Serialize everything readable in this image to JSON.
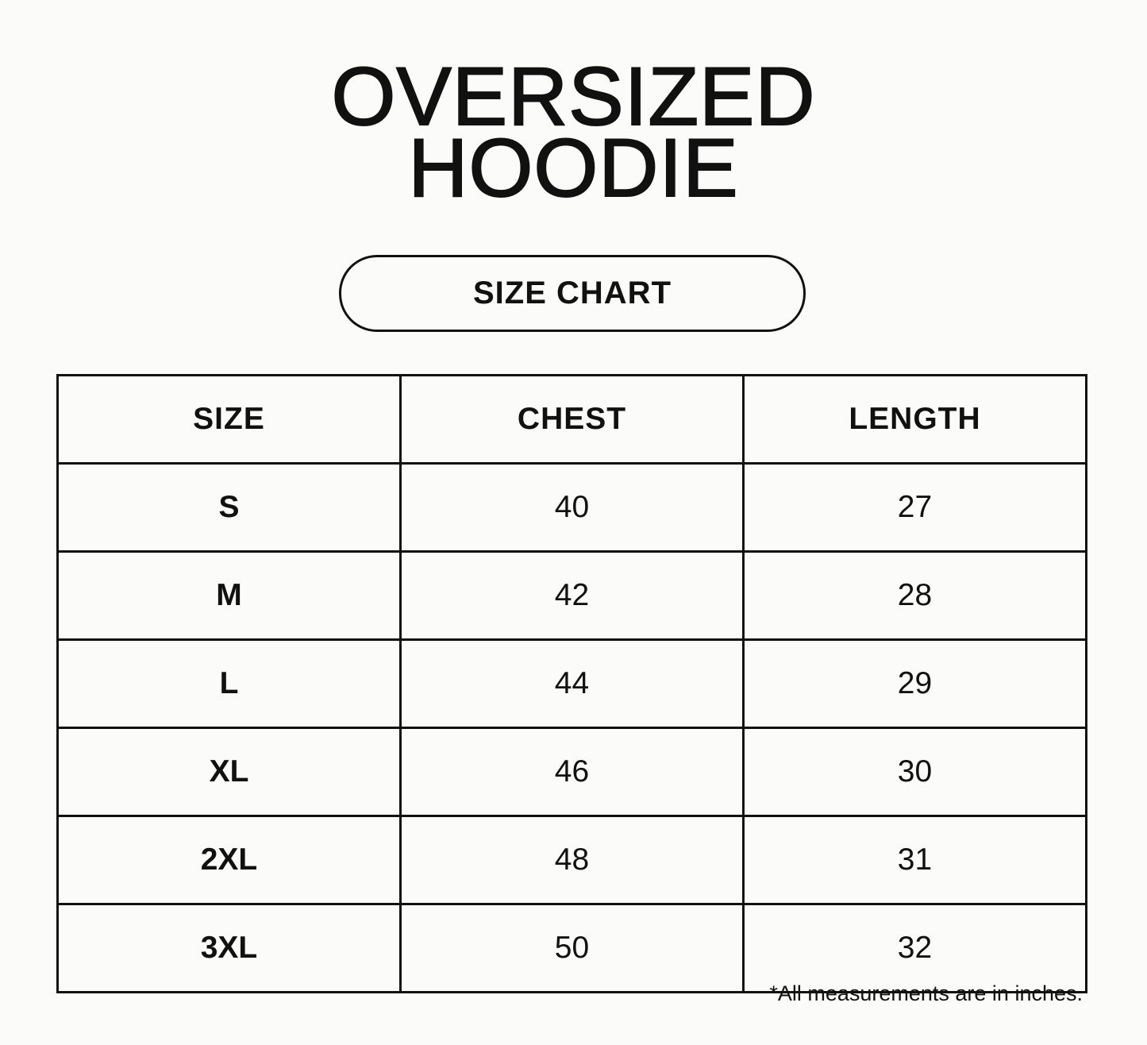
{
  "title": {
    "line1": "OVERSIZED",
    "line2": "HOODIE"
  },
  "badge": "SIZE CHART",
  "table": {
    "headers": [
      "SIZE",
      "CHEST",
      "LENGTH"
    ],
    "rows": [
      [
        "S",
        "40",
        "27"
      ],
      [
        "M",
        "42",
        "28"
      ],
      [
        "L",
        "44",
        "29"
      ],
      [
        "XL",
        "46",
        "30"
      ],
      [
        "2XL",
        "48",
        "31"
      ],
      [
        "3XL",
        "50",
        "32"
      ]
    ]
  },
  "footnote": "*All measurements are in inches."
}
